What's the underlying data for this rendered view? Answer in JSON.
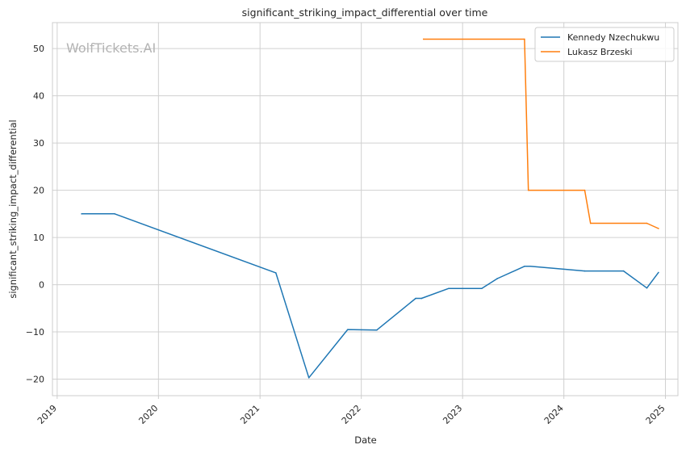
{
  "chart_data": {
    "type": "line",
    "title": "significant_striking_impact_differential over time",
    "xlabel": "Date",
    "ylabel": "significant_striking_impact_differential",
    "watermark": "WolfTickets.AI",
    "x_axis_type": "date",
    "xlim": [
      "2018-12-15",
      "2025-02-15"
    ],
    "ylim": [
      -23.5,
      55.5
    ],
    "xticks": [
      "2019",
      "2020",
      "2021",
      "2022",
      "2023",
      "2024",
      "2025"
    ],
    "yticks": [
      -20,
      -10,
      0,
      10,
      20,
      30,
      40,
      50
    ],
    "grid": true,
    "legend_position": "top-right",
    "series": [
      {
        "name": "Kennedy Nzechukwu",
        "color": "#1f77b4",
        "points": [
          [
            "2019-03-30",
            15.0
          ],
          [
            "2019-07-27",
            15.0
          ],
          [
            "2021-02-27",
            2.5
          ],
          [
            "2021-06-26",
            -19.7
          ],
          [
            "2021-11-13",
            -9.5
          ],
          [
            "2022-02-26",
            -9.6
          ],
          [
            "2022-07-16",
            -2.9
          ],
          [
            "2022-08-06",
            -2.9
          ],
          [
            "2022-11-12",
            -0.8
          ],
          [
            "2023-03-11",
            -0.8
          ],
          [
            "2023-05-06",
            1.3
          ],
          [
            "2023-08-12",
            3.9
          ],
          [
            "2023-09-02",
            3.9
          ],
          [
            "2024-03-16",
            2.9
          ],
          [
            "2024-08-03",
            2.9
          ],
          [
            "2024-10-26",
            -0.7
          ],
          [
            "2024-12-07",
            2.6
          ]
        ]
      },
      {
        "name": "Lukasz Brzeski",
        "color": "#ff7f0e",
        "points": [
          [
            "2022-08-13",
            52.0
          ],
          [
            "2023-08-12",
            52.0
          ],
          [
            "2023-08-26",
            20.0
          ],
          [
            "2024-03-16",
            20.0
          ],
          [
            "2024-04-06",
            13.0
          ],
          [
            "2024-10-26",
            13.0
          ],
          [
            "2024-12-07",
            11.9
          ]
        ]
      }
    ]
  }
}
